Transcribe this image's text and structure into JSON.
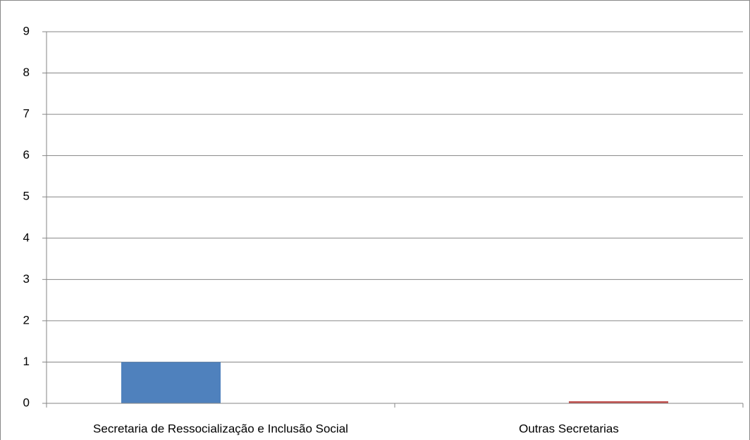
{
  "chart_data": {
    "type": "bar",
    "categories": [
      "Secretaria de Ressocialização e Inclusão Social",
      "Outras Secretarias"
    ],
    "series": [
      {
        "color": "#4f81bd",
        "values": [
          1,
          0
        ]
      },
      {
        "color": "#c0504d",
        "values": [
          0,
          0.05
        ]
      }
    ],
    "ylim": [
      0,
      9
    ],
    "yticks": [
      0,
      1,
      2,
      3,
      4,
      5,
      6,
      7,
      8,
      9
    ],
    "grid": true
  }
}
